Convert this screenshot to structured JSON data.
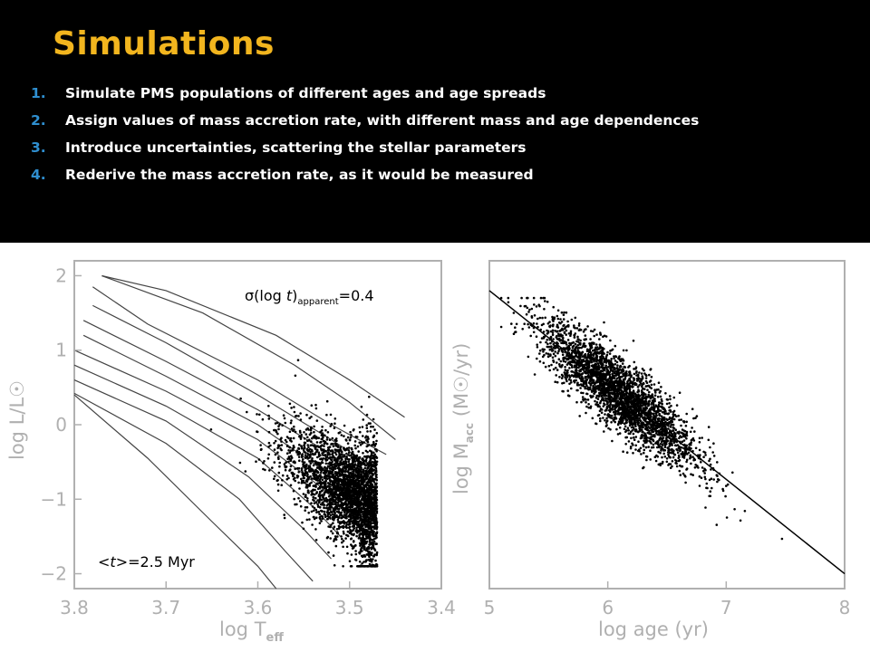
{
  "slide": {
    "title": "Simulations",
    "steps": [
      {
        "number": "1.",
        "text": "Simulate PMS populations of different ages and age spreads"
      },
      {
        "number": "2.",
        "text": "Assign values of mass accretion rate, with different mass and age dependences"
      },
      {
        "number": "3.",
        "text": "Introduce uncertainties, scattering the stellar parameters"
      },
      {
        "number": "4.",
        "text": "Rederive the mass accretion rate, as it would be measured"
      }
    ]
  },
  "colors": {
    "title": "#f2b51e",
    "list_number": "#2f8fd0",
    "text": "#ffffff",
    "background": "#000000",
    "plot_background": "#ffffff",
    "axis_label": "#b0b0b0"
  },
  "chart_data": [
    {
      "type": "scatter",
      "xlabel": "log T",
      "xlabel_sub": "eff",
      "ylabel": "log L/L☉",
      "xlim": [
        3.8,
        3.4
      ],
      "ylim": [
        -2.2,
        2.2
      ],
      "x_ticks": [
        "3.8",
        "3.7",
        "3.6",
        "3.5",
        "3.4"
      ],
      "y_ticks": [
        "2",
        "1",
        "0",
        "−1",
        "−2"
      ],
      "annotations": [
        {
          "name": "spread",
          "prefix": "σ(log ",
          "italic": "t",
          "sub": "apparent",
          "suffix": "=0.4"
        },
        {
          "name": "mean-age",
          "prefix": "<",
          "italic": "t",
          "suffix": ">=2.5 Myr"
        }
      ],
      "isochrones": [
        {
          "x": [
            3.77,
            3.7,
            3.58,
            3.5,
            3.44
          ],
          "y": [
            2.0,
            1.8,
            1.2,
            0.6,
            0.1
          ]
        },
        {
          "x": [
            3.77,
            3.66,
            3.56,
            3.5,
            3.45
          ],
          "y": [
            2.0,
            1.5,
            0.8,
            0.3,
            -0.2
          ]
        },
        {
          "x": [
            3.78,
            3.72,
            3.6,
            3.52,
            3.46
          ],
          "y": [
            1.85,
            1.35,
            0.6,
            0.0,
            -0.4
          ]
        },
        {
          "x": [
            3.78,
            3.7,
            3.6,
            3.52,
            3.47
          ],
          "y": [
            1.6,
            1.1,
            0.4,
            -0.2,
            -0.6
          ]
        },
        {
          "x": [
            3.79,
            3.7,
            3.6,
            3.52,
            3.48
          ],
          "y": [
            1.4,
            0.85,
            0.2,
            -0.4,
            -0.8
          ]
        },
        {
          "x": [
            3.79,
            3.7,
            3.6,
            3.53,
            3.49
          ],
          "y": [
            1.2,
            0.65,
            0.0,
            -0.6,
            -1.0
          ]
        },
        {
          "x": [
            3.8,
            3.7,
            3.6,
            3.53,
            3.5
          ],
          "y": [
            1.0,
            0.45,
            -0.2,
            -0.85,
            -1.2
          ]
        },
        {
          "x": [
            3.8,
            3.7,
            3.6,
            3.54,
            3.51
          ],
          "y": [
            0.8,
            0.25,
            -0.45,
            -1.1,
            -1.5
          ]
        },
        {
          "x": [
            3.8,
            3.7,
            3.61,
            3.55,
            3.52
          ],
          "y": [
            0.6,
            0.05,
            -0.7,
            -1.4,
            -1.8
          ]
        },
        {
          "x": [
            3.8,
            3.7,
            3.62,
            3.57,
            3.54
          ],
          "y": [
            0.42,
            -0.25,
            -1.0,
            -1.7,
            -2.1
          ]
        },
        {
          "x": [
            3.8,
            3.72,
            3.65,
            3.6,
            3.58
          ],
          "y": [
            0.4,
            -0.45,
            -1.3,
            -1.9,
            -2.2
          ]
        }
      ],
      "points": {
        "count": 3000,
        "x_range": [
          3.47,
          3.68
        ],
        "y_range": [
          -1.9,
          1.0
        ]
      }
    },
    {
      "type": "scatter",
      "xlabel": "log age  (yr)",
      "ylabel": "log M",
      "ylabel_sub": "acc",
      "ylabel_suffix": "  (M☉/yr)",
      "xlim": [
        5,
        8
      ],
      "x_ticks": [
        "5",
        "6",
        "7",
        "8"
      ],
      "fit_line": {
        "x": [
          5.0,
          8.0
        ],
        "y": [
          1.0,
          -0.9
        ]
      },
      "points": {
        "count": 3000,
        "x_range": [
          5.1,
          7.8
        ],
        "y_range": [
          -0.8,
          0.9
        ]
      }
    }
  ]
}
